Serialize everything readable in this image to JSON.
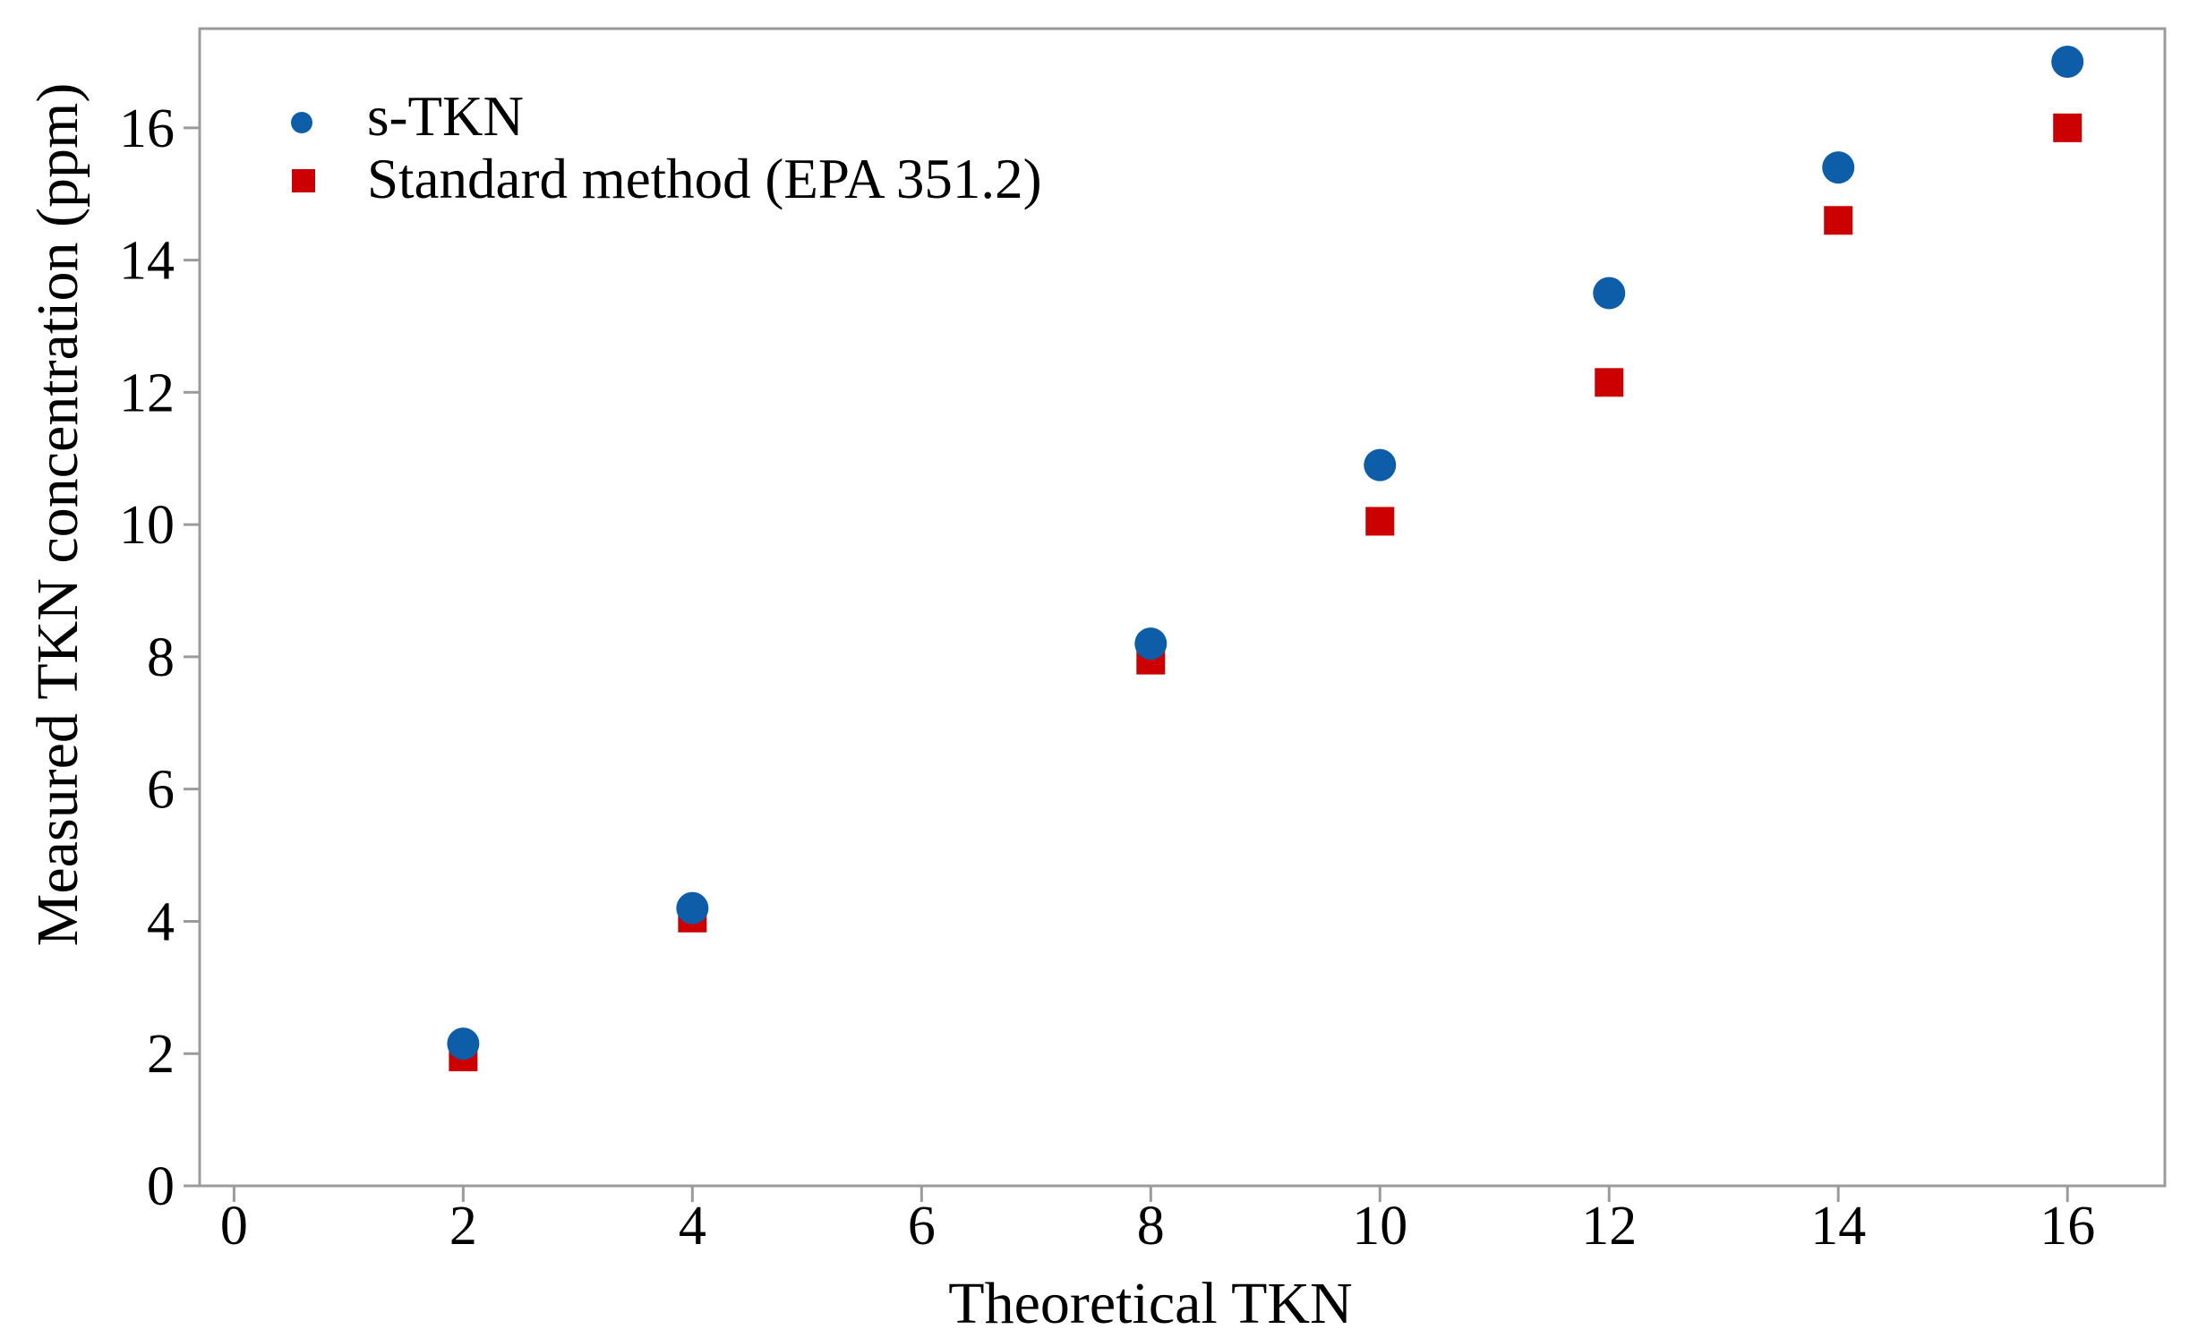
{
  "chart_data": {
    "type": "scatter",
    "title": "",
    "xlabel": "Theoretical TKN",
    "ylabel": "Measured TKN concentration (ppm)",
    "x": [
      2,
      4,
      8,
      10,
      12,
      14,
      16
    ],
    "series": [
      {
        "name": "s-TKN",
        "marker": "circle",
        "color": "#0E5DA8",
        "values": [
          2.15,
          4.2,
          8.2,
          10.9,
          13.5,
          15.4,
          17.0
        ]
      },
      {
        "name": "Standard method (EPA 351.2)",
        "marker": "square",
        "color": "#CC0000",
        "values": [
          1.95,
          4.05,
          7.95,
          10.05,
          12.15,
          14.6,
          16.0
        ]
      }
    ],
    "x_ticks": [
      0,
      2,
      4,
      6,
      8,
      10,
      12,
      14,
      16
    ],
    "y_ticks": [
      0,
      2,
      4,
      6,
      8,
      10,
      12,
      14,
      16
    ],
    "xlim": [
      -0.3,
      16.85
    ],
    "ylim": [
      0,
      17.5
    ],
    "grid": false,
    "legend_position": "top-left",
    "axis_color": "#9B9B9B",
    "text_color": "#000000"
  }
}
